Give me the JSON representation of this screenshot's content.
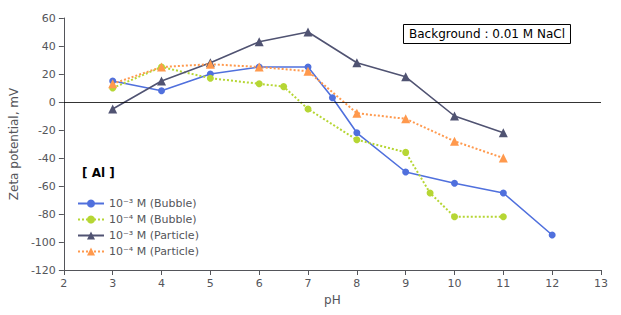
{
  "chart_data": {
    "type": "line",
    "xlabel": "pH",
    "ylabel": "Zeta potential, mV",
    "xlim": [
      2,
      13
    ],
    "ylim": [
      -120,
      60
    ],
    "xticks": [
      2,
      3,
      4,
      5,
      6,
      7,
      8,
      9,
      10,
      11,
      12,
      13
    ],
    "yticks": [
      -120,
      -100,
      -80,
      -60,
      -40,
      -20,
      0,
      20,
      40,
      60
    ],
    "grid": false,
    "legend": "lower left",
    "legend_title": "[ Al ]",
    "annotation": "Background : 0.01 M NaCl",
    "hlines": [
      0
    ],
    "series": [
      {
        "name": "10⁻³ M (Bubble)",
        "marker": "circle",
        "line_style": "solid",
        "x": [
          3,
          4,
          5,
          6,
          7,
          7.5,
          8,
          9,
          10,
          11,
          12
        ],
        "values": [
          15,
          8,
          20,
          25,
          25,
          3,
          -22,
          -50,
          -58,
          -65,
          -95
        ]
      },
      {
        "name": "10⁻⁴ M (Bubble)",
        "marker": "circle",
        "line_style": "dotted",
        "x": [
          3,
          4,
          5,
          6,
          6.5,
          7,
          8,
          9,
          9.5,
          10,
          11
        ],
        "values": [
          10,
          25,
          17,
          13,
          11,
          -5,
          -27,
          -36,
          -65,
          -82,
          -82
        ]
      },
      {
        "name": "10⁻³ M (Particle)",
        "marker": "triangle",
        "line_style": "solid",
        "x": [
          3,
          4,
          5,
          6,
          7,
          8,
          9,
          10,
          11
        ],
        "values": [
          -5,
          15,
          28,
          43,
          50,
          28,
          18,
          -10,
          -22
        ]
      },
      {
        "name": "10⁻⁴ M (Particle)",
        "marker": "triangle",
        "line_style": "dotted",
        "x": [
          3,
          4,
          5,
          6,
          7,
          8,
          9,
          10,
          11
        ],
        "values": [
          13,
          25,
          27,
          25,
          22,
          -8,
          -12,
          -28,
          -40
        ]
      }
    ]
  }
}
